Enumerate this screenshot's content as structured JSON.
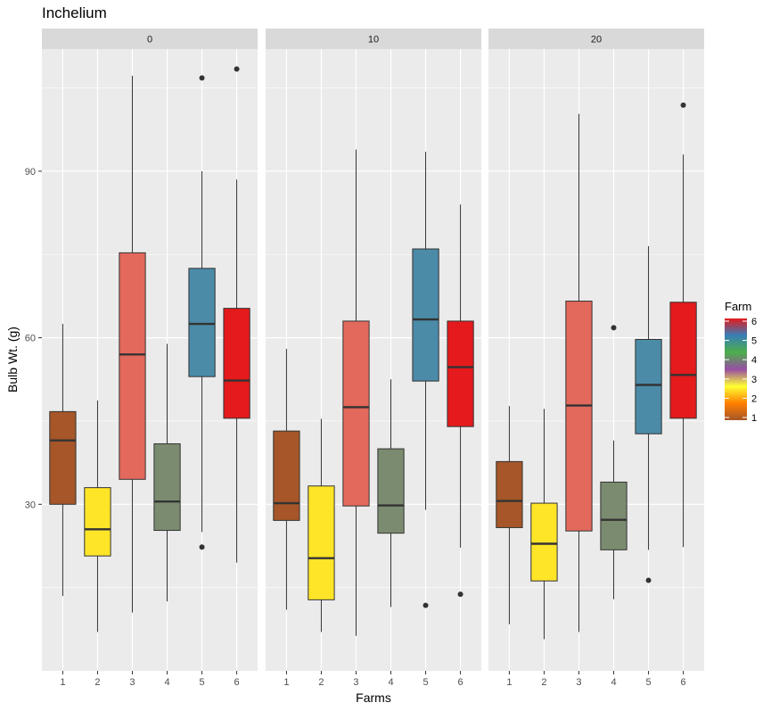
{
  "chart_data": {
    "type": "boxplot",
    "title": "Inchelium",
    "xlabel": "Farms",
    "ylabel": "Bulb Wt. (g)",
    "y_ticks": [
      30,
      60,
      90
    ],
    "ylim": [
      0,
      112
    ],
    "categories": [
      "1",
      "2",
      "3",
      "4",
      "5",
      "6"
    ],
    "facets": [
      {
        "label": "0",
        "boxes": [
          {
            "farm": "1",
            "q1": 30,
            "median": 41.5,
            "q3": 46.7,
            "whisker_low": 13.5,
            "whisker_high": 62.5,
            "outliers": []
          },
          {
            "farm": "2",
            "q1": 20.7,
            "median": 25.5,
            "q3": 33,
            "whisker_low": 7,
            "whisker_high": 48.7,
            "outliers": []
          },
          {
            "farm": "3",
            "q1": 34.5,
            "median": 57,
            "q3": 75.3,
            "whisker_low": 10.5,
            "whisker_high": 107.2,
            "outliers": []
          },
          {
            "farm": "4",
            "q1": 25.3,
            "median": 30.5,
            "q3": 40.9,
            "whisker_low": 12.5,
            "whisker_high": 58.9,
            "outliers": []
          },
          {
            "farm": "5",
            "q1": 53,
            "median": 62.5,
            "q3": 72.5,
            "whisker_low": 25,
            "whisker_high": 90,
            "outliers": [
              106.8,
              22.3
            ]
          },
          {
            "farm": "6",
            "q1": 45.5,
            "median": 52.3,
            "q3": 65.3,
            "whisker_low": 19.5,
            "whisker_high": 88.5,
            "outliers": [
              108.4
            ]
          }
        ]
      },
      {
        "label": "10",
        "boxes": [
          {
            "farm": "1",
            "q1": 27.1,
            "median": 30.2,
            "q3": 43.2,
            "whisker_low": 11,
            "whisker_high": 58,
            "outliers": []
          },
          {
            "farm": "2",
            "q1": 12.8,
            "median": 20.3,
            "q3": 33.3,
            "whisker_low": 7,
            "whisker_high": 45.4,
            "outliers": []
          },
          {
            "farm": "3",
            "q1": 29.7,
            "median": 47.5,
            "q3": 63,
            "whisker_low": 6.3,
            "whisker_high": 93.9,
            "outliers": []
          },
          {
            "farm": "4",
            "q1": 24.8,
            "median": 29.8,
            "q3": 40,
            "whisker_low": 11.5,
            "whisker_high": 52.5,
            "outliers": []
          },
          {
            "farm": "5",
            "q1": 52.2,
            "median": 63.3,
            "q3": 76,
            "whisker_low": 29,
            "whisker_high": 93.5,
            "outliers": [
              11.8
            ]
          },
          {
            "farm": "6",
            "q1": 44,
            "median": 54.7,
            "q3": 63,
            "whisker_low": 22.2,
            "whisker_high": 84,
            "outliers": [
              13.8
            ]
          }
        ]
      },
      {
        "label": "20",
        "boxes": [
          {
            "farm": "1",
            "q1": 25.8,
            "median": 30.6,
            "q3": 37.7,
            "whisker_low": 8.4,
            "whisker_high": 47.7,
            "outliers": []
          },
          {
            "farm": "2",
            "q1": 16.2,
            "median": 22.9,
            "q3": 30.2,
            "whisker_low": 5.7,
            "whisker_high": 47.2,
            "outliers": []
          },
          {
            "farm": "3",
            "q1": 25.2,
            "median": 47.8,
            "q3": 66.6,
            "whisker_low": 7,
            "whisker_high": 100.3,
            "outliers": []
          },
          {
            "farm": "4",
            "q1": 21.8,
            "median": 27.2,
            "q3": 34,
            "whisker_low": 12.9,
            "whisker_high": 41.5,
            "outliers": [
              61.8
            ]
          },
          {
            "farm": "5",
            "q1": 42.7,
            "median": 51.5,
            "q3": 59.7,
            "whisker_low": 21.8,
            "whisker_high": 76.5,
            "outliers": [
              16.3
            ]
          },
          {
            "farm": "6",
            "q1": 45.5,
            "median": 53.3,
            "q3": 66.4,
            "whisker_low": 22.3,
            "whisker_high": 93,
            "outliers": [
              101.9
            ]
          }
        ]
      }
    ],
    "legend": {
      "title": "Farm",
      "ticks": [
        "1",
        "2",
        "3",
        "4",
        "5",
        "6"
      ],
      "position": "right"
    },
    "fill_colors": {
      "1": "#A65628",
      "2": "#FFE528",
      "3": "#E3695C",
      "4": "#7B8B6F",
      "5": "#4B8BA8",
      "6": "#E41A1C"
    },
    "legend_gradient": [
      "#A65628",
      "#FF7F00",
      "#FFFF33",
      "#984EA3",
      "#4DAF4A",
      "#377EB8",
      "#E41A1C"
    ],
    "grid": true,
    "panel_background": "#EBEBEB",
    "strip_background": "#D9D9D9"
  }
}
